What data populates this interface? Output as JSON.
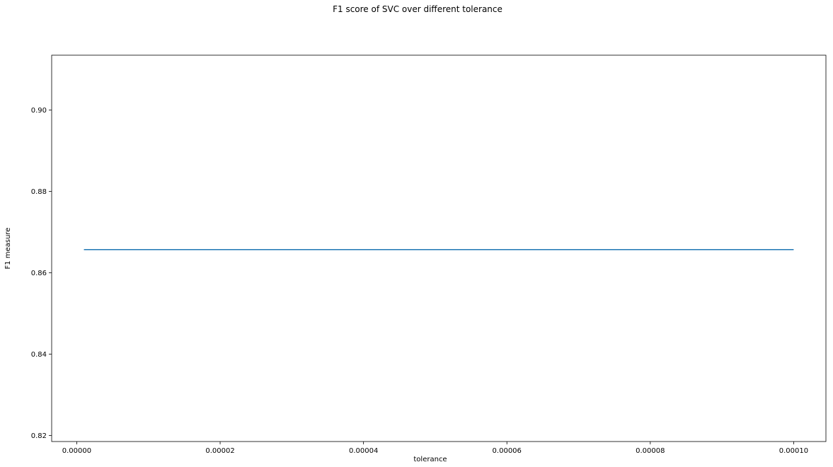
{
  "chart_data": {
    "type": "line",
    "title": "F1 score of SVC over different tolerance",
    "xlabel": "tolerance",
    "ylabel": "F1 measure",
    "xlim": [
      -3.5e-06,
      0.0001045
    ],
    "ylim": [
      0.8185,
      0.9135
    ],
    "x_ticks": [
      0.0,
      2e-05,
      4e-05,
      6e-05,
      8e-05,
      0.0001
    ],
    "x_tick_labels": [
      "0.00000",
      "0.00002",
      "0.00004",
      "0.00006",
      "0.00008",
      "0.00010"
    ],
    "y_ticks": [
      0.82,
      0.84,
      0.86,
      0.88,
      0.9
    ],
    "y_tick_labels": [
      "0.82",
      "0.84",
      "0.86",
      "0.88",
      "0.90"
    ],
    "grid": false,
    "series": [
      {
        "x": [
          1e-06,
          0.0001
        ],
        "y": [
          0.8657,
          0.8657
        ],
        "color": "#1f77b4"
      }
    ]
  }
}
